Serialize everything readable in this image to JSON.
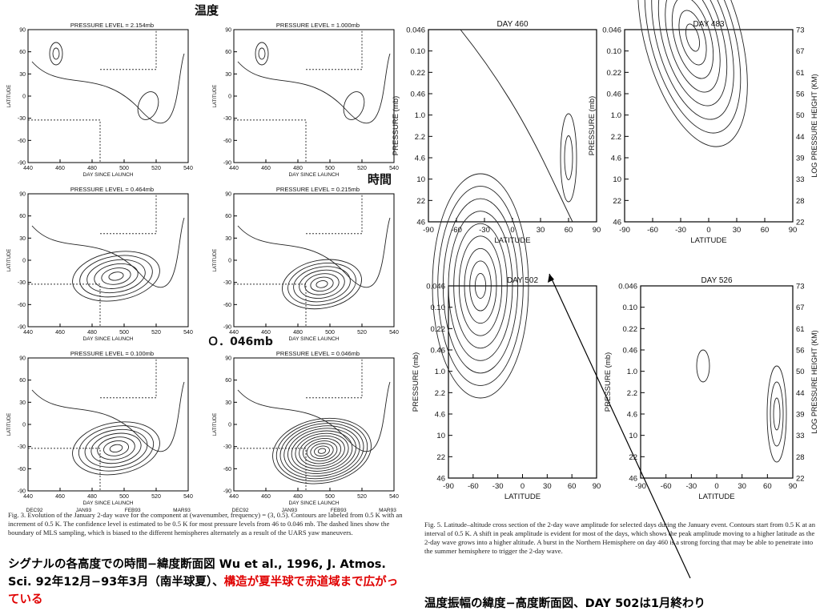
{
  "annotations": {
    "temperature": "温度",
    "time": "時間",
    "level": "Ｏ．046mb"
  },
  "left_figure": {
    "panels": [
      {
        "title": "PRESSURE LEVEL =   2.154mb"
      },
      {
        "title": "PRESSURE LEVEL =   1.000mb"
      },
      {
        "title": "PRESSURE LEVEL =   0.464mb"
      },
      {
        "title": "PRESSURE LEVEL =   0.215mb"
      },
      {
        "title": "PRESSURE LEVEL =   0.100mb"
      },
      {
        "title": "PRESSURE LEVEL =   0.046mb"
      }
    ],
    "y_label": "LATITUDE",
    "x_label": "DAY SINCE LAUNCH",
    "y_ticks": [
      "90",
      "60",
      "30",
      "0",
      "-30",
      "-60",
      "-90"
    ],
    "x_ticks": [
      "440",
      "460",
      "480",
      "500",
      "520",
      "540"
    ],
    "month_ticks": [
      "DEC92",
      "JAN93",
      "FEB93",
      "MAR93"
    ],
    "caption": "Fig. 3. Evolution of the January 2-day wave for the component at (wavenumber, frequency) = (3, 0.5). Contours are labeled from 0.5 K with an increment of 0.5 K. The confidence level is estimated to be 0.5 K for most pressure levels from 46 to 0.046 mb. The dashed lines show the boundary of MLS sampling, which is biased to the different hemispheres alternately as a result of the UARS yaw maneuvers."
  },
  "right_figure": {
    "panels": [
      {
        "title": "DAY 460"
      },
      {
        "title": "DAY 483"
      },
      {
        "title": "DAY 502"
      },
      {
        "title": "DAY 526"
      }
    ],
    "y_label": "PRESSURE (mb)",
    "y2_label": "LOG PRESSURE HEIGHT (KM)",
    "x_label": "LATITUDE",
    "pressure_ticks": [
      "0.046",
      "0.10",
      "0.22",
      "0.46",
      "1.0",
      "2.2",
      "4.6",
      "10",
      "22",
      "46"
    ],
    "height_ticks": [
      "73",
      "67",
      "61",
      "56",
      "50",
      "44",
      "39",
      "33",
      "28",
      "22"
    ],
    "latitude_ticks": [
      "-90",
      "-60",
      "-30",
      "0",
      "30",
      "60",
      "90"
    ],
    "caption": "Fig. 5. Latitude–altitude cross section of the 2-day wave amplitude for selected days during the January event. Contours start from 0.5 K at an interval of 0.5 K. A shift in peak amplitude is evident for most of the days, which shows the peak amplitude moving to a higher latitude as the 2-day wave grows into a higher altitude. A burst in the Northern Hemisphere on day 460 is a strong forcing that may be able to penetrate into the summer hemisphere to trigger the 2-day wave."
  },
  "notes": {
    "left": "シグナルの各高度での時間−緯度断面図 Wu et al., 1996, J. Atmos. Sci. 92年12月−93年3月（南半球夏）、",
    "left_highlight": "構造が夏半球で赤道域まで広がっている",
    "right": "温度振幅の緯度−高度断面図、DAY 502は1月終わり"
  }
}
